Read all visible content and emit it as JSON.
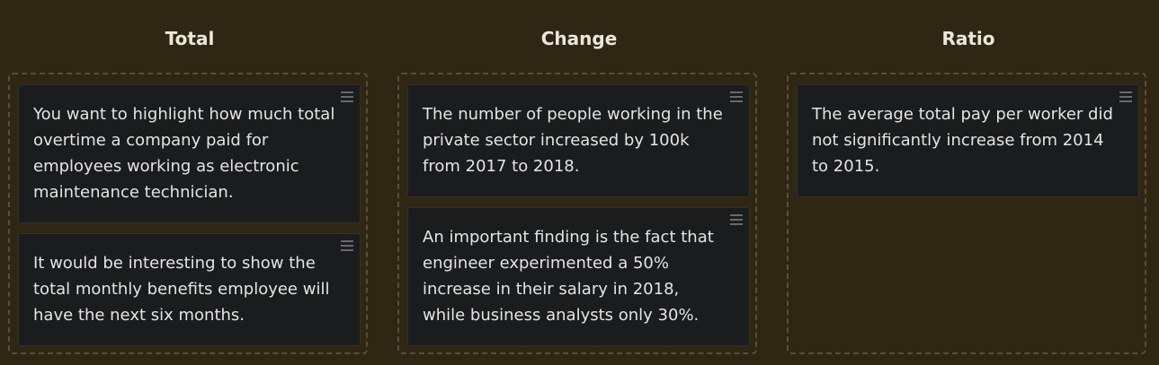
{
  "columns": [
    {
      "title": "Total",
      "cards": [
        {
          "text": "You want to highlight how much total overtime a company paid for employees working as electronic maintenance technician."
        },
        {
          "text": "It would be interesting to show the total monthly benefits employee will have the next six months."
        }
      ]
    },
    {
      "title": "Change",
      "cards": [
        {
          "text": "The number of people working in the private sector increased by 100k from 2017 to 2018."
        },
        {
          "text": "An important finding is the fact that engineer experimented a 50% increase in their salary in 2018, while business analysts only 30%."
        }
      ]
    },
    {
      "title": "Ratio",
      "cards": [
        {
          "text": "The average total pay per worker did not significantly increase from 2014 to 2015."
        }
      ]
    }
  ],
  "icons": {
    "card_handle": "drag-handle-icon"
  }
}
